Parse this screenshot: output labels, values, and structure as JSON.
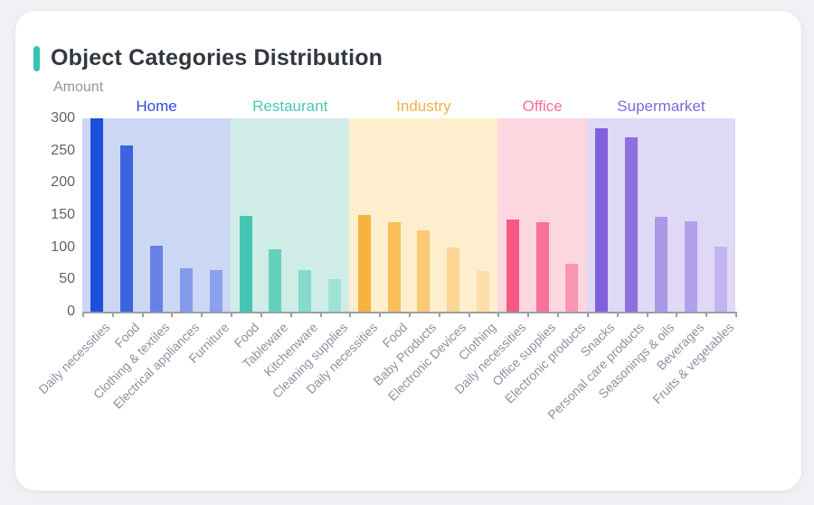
{
  "card": {
    "title": "Object Categories Distribution",
    "accent_color": "#35c3b4"
  },
  "chart_data": {
    "type": "bar",
    "title": "Object Categories Distribution",
    "xlabel": "",
    "ylabel": "Amount",
    "ylim": [
      0,
      300
    ],
    "yticks": [
      0,
      50,
      100,
      150,
      200,
      250,
      300
    ],
    "grid": false,
    "legend_position": "grouped-headers-above-plot",
    "axis_color": "#98a0a6",
    "ytick_color": "#5f6368",
    "xtick_color": "#8d92a0",
    "groups": [
      {
        "name": "Home",
        "label_color": "#2b4ed4",
        "band_color": "#ccd7f4",
        "categories": [
          "Daily necessities",
          "Food",
          "Clothing & textiles",
          "Electrical appliances",
          "Furniture"
        ],
        "values": [
          300,
          258,
          102,
          68,
          64
        ],
        "bar_colors": [
          "#1d4edc",
          "#3c63e0",
          "#6781e7",
          "#8299ec",
          "#8ba0ee"
        ]
      },
      {
        "name": "Restaurant",
        "label_color": "#49c7b3",
        "band_color": "#d0ece7",
        "categories": [
          "Food",
          "Tableware",
          "Kitchenware",
          "Cleaning supplies"
        ],
        "values": [
          148,
          97,
          64,
          51
        ],
        "bar_colors": [
          "#44c5b1",
          "#66d0bf",
          "#85dacb",
          "#9fe3d6"
        ]
      },
      {
        "name": "Industry",
        "label_color": "#edb244",
        "band_color": "#fdeecd",
        "categories": [
          "Daily necessities",
          "Food",
          "Baby Products",
          "Electronic Devices",
          "Clothing"
        ],
        "values": [
          150,
          139,
          126,
          99,
          63
        ],
        "bar_colors": [
          "#f7b33c",
          "#f8bf5a",
          "#f9c976",
          "#fbd694",
          "#fcdfab"
        ]
      },
      {
        "name": "Office",
        "label_color": "#f96e92",
        "band_color": "#fcd7e0",
        "categories": [
          "Daily necessities",
          "Office supplies",
          "Electronic products"
        ],
        "values": [
          143,
          139,
          74
        ],
        "bar_colors": [
          "#f65884",
          "#f8719a",
          "#fa96b2"
        ]
      },
      {
        "name": "Supermarket",
        "label_color": "#7f6ad8",
        "band_color": "#dfd9f6",
        "categories": [
          "Snacks",
          "Personal care products",
          "Seasonings & oils",
          "Beverages",
          "Fruits & vegetables"
        ],
        "values": [
          285,
          271,
          147,
          140,
          101
        ],
        "bar_colors": [
          "#8161da",
          "#9070df",
          "#ab97e8",
          "#b2a0ea",
          "#c2b4ef"
        ]
      }
    ]
  }
}
